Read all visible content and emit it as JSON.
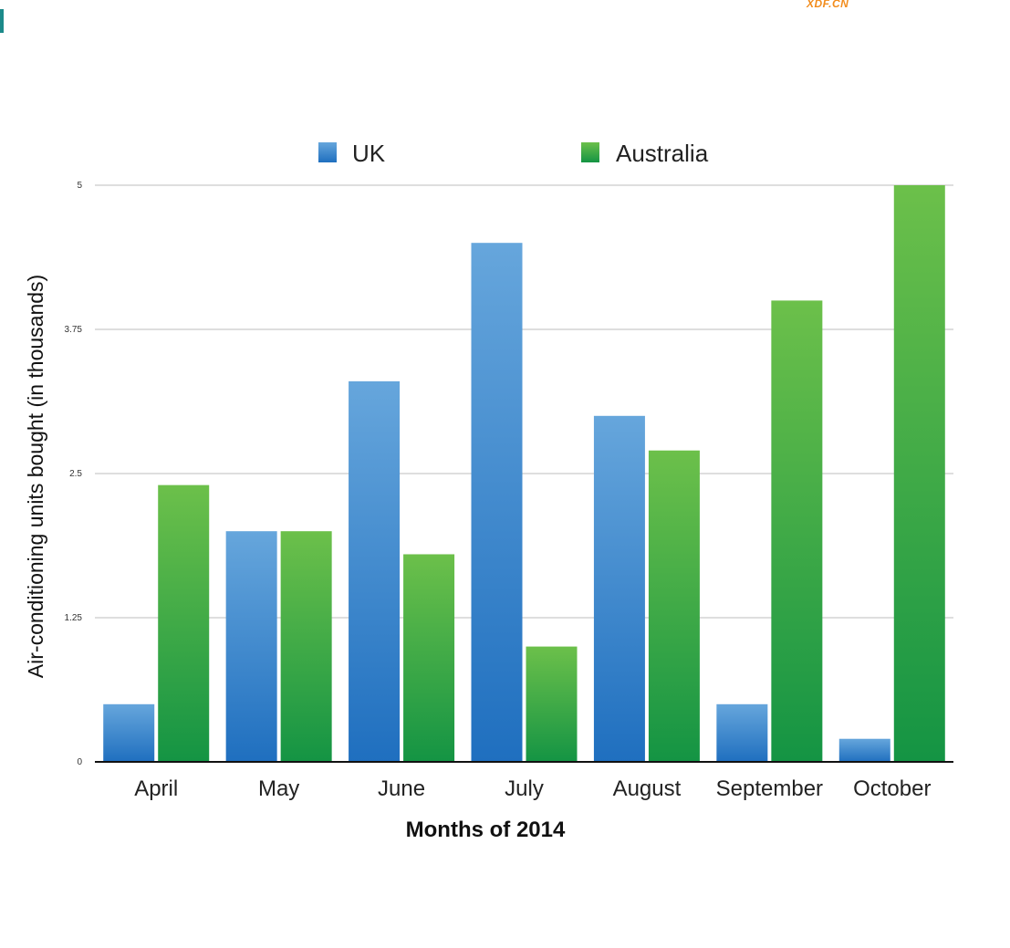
{
  "watermark": "XDF.CN",
  "chart_data": {
    "type": "bar",
    "categories": [
      "April",
      "May",
      "June",
      "July",
      "August",
      "September",
      "October"
    ],
    "series": [
      {
        "name": "UK",
        "values": [
          0.5,
          2.0,
          3.3,
          4.5,
          3.0,
          0.5,
          0.2
        ],
        "color": "#3a85cf"
      },
      {
        "name": "Australia",
        "values": [
          2.4,
          2.0,
          1.8,
          1.0,
          2.7,
          4.0,
          5.0
        ],
        "color": "#3aa84a"
      }
    ],
    "xlabel": "Months of 2014",
    "ylabel": "Air-conditioning units bought (in thousands)",
    "ylim": [
      0,
      5
    ],
    "yticks": [
      "0",
      "1.25",
      "2.5",
      "3.75",
      "5"
    ],
    "grid": true,
    "legend_position": "top-center"
  }
}
